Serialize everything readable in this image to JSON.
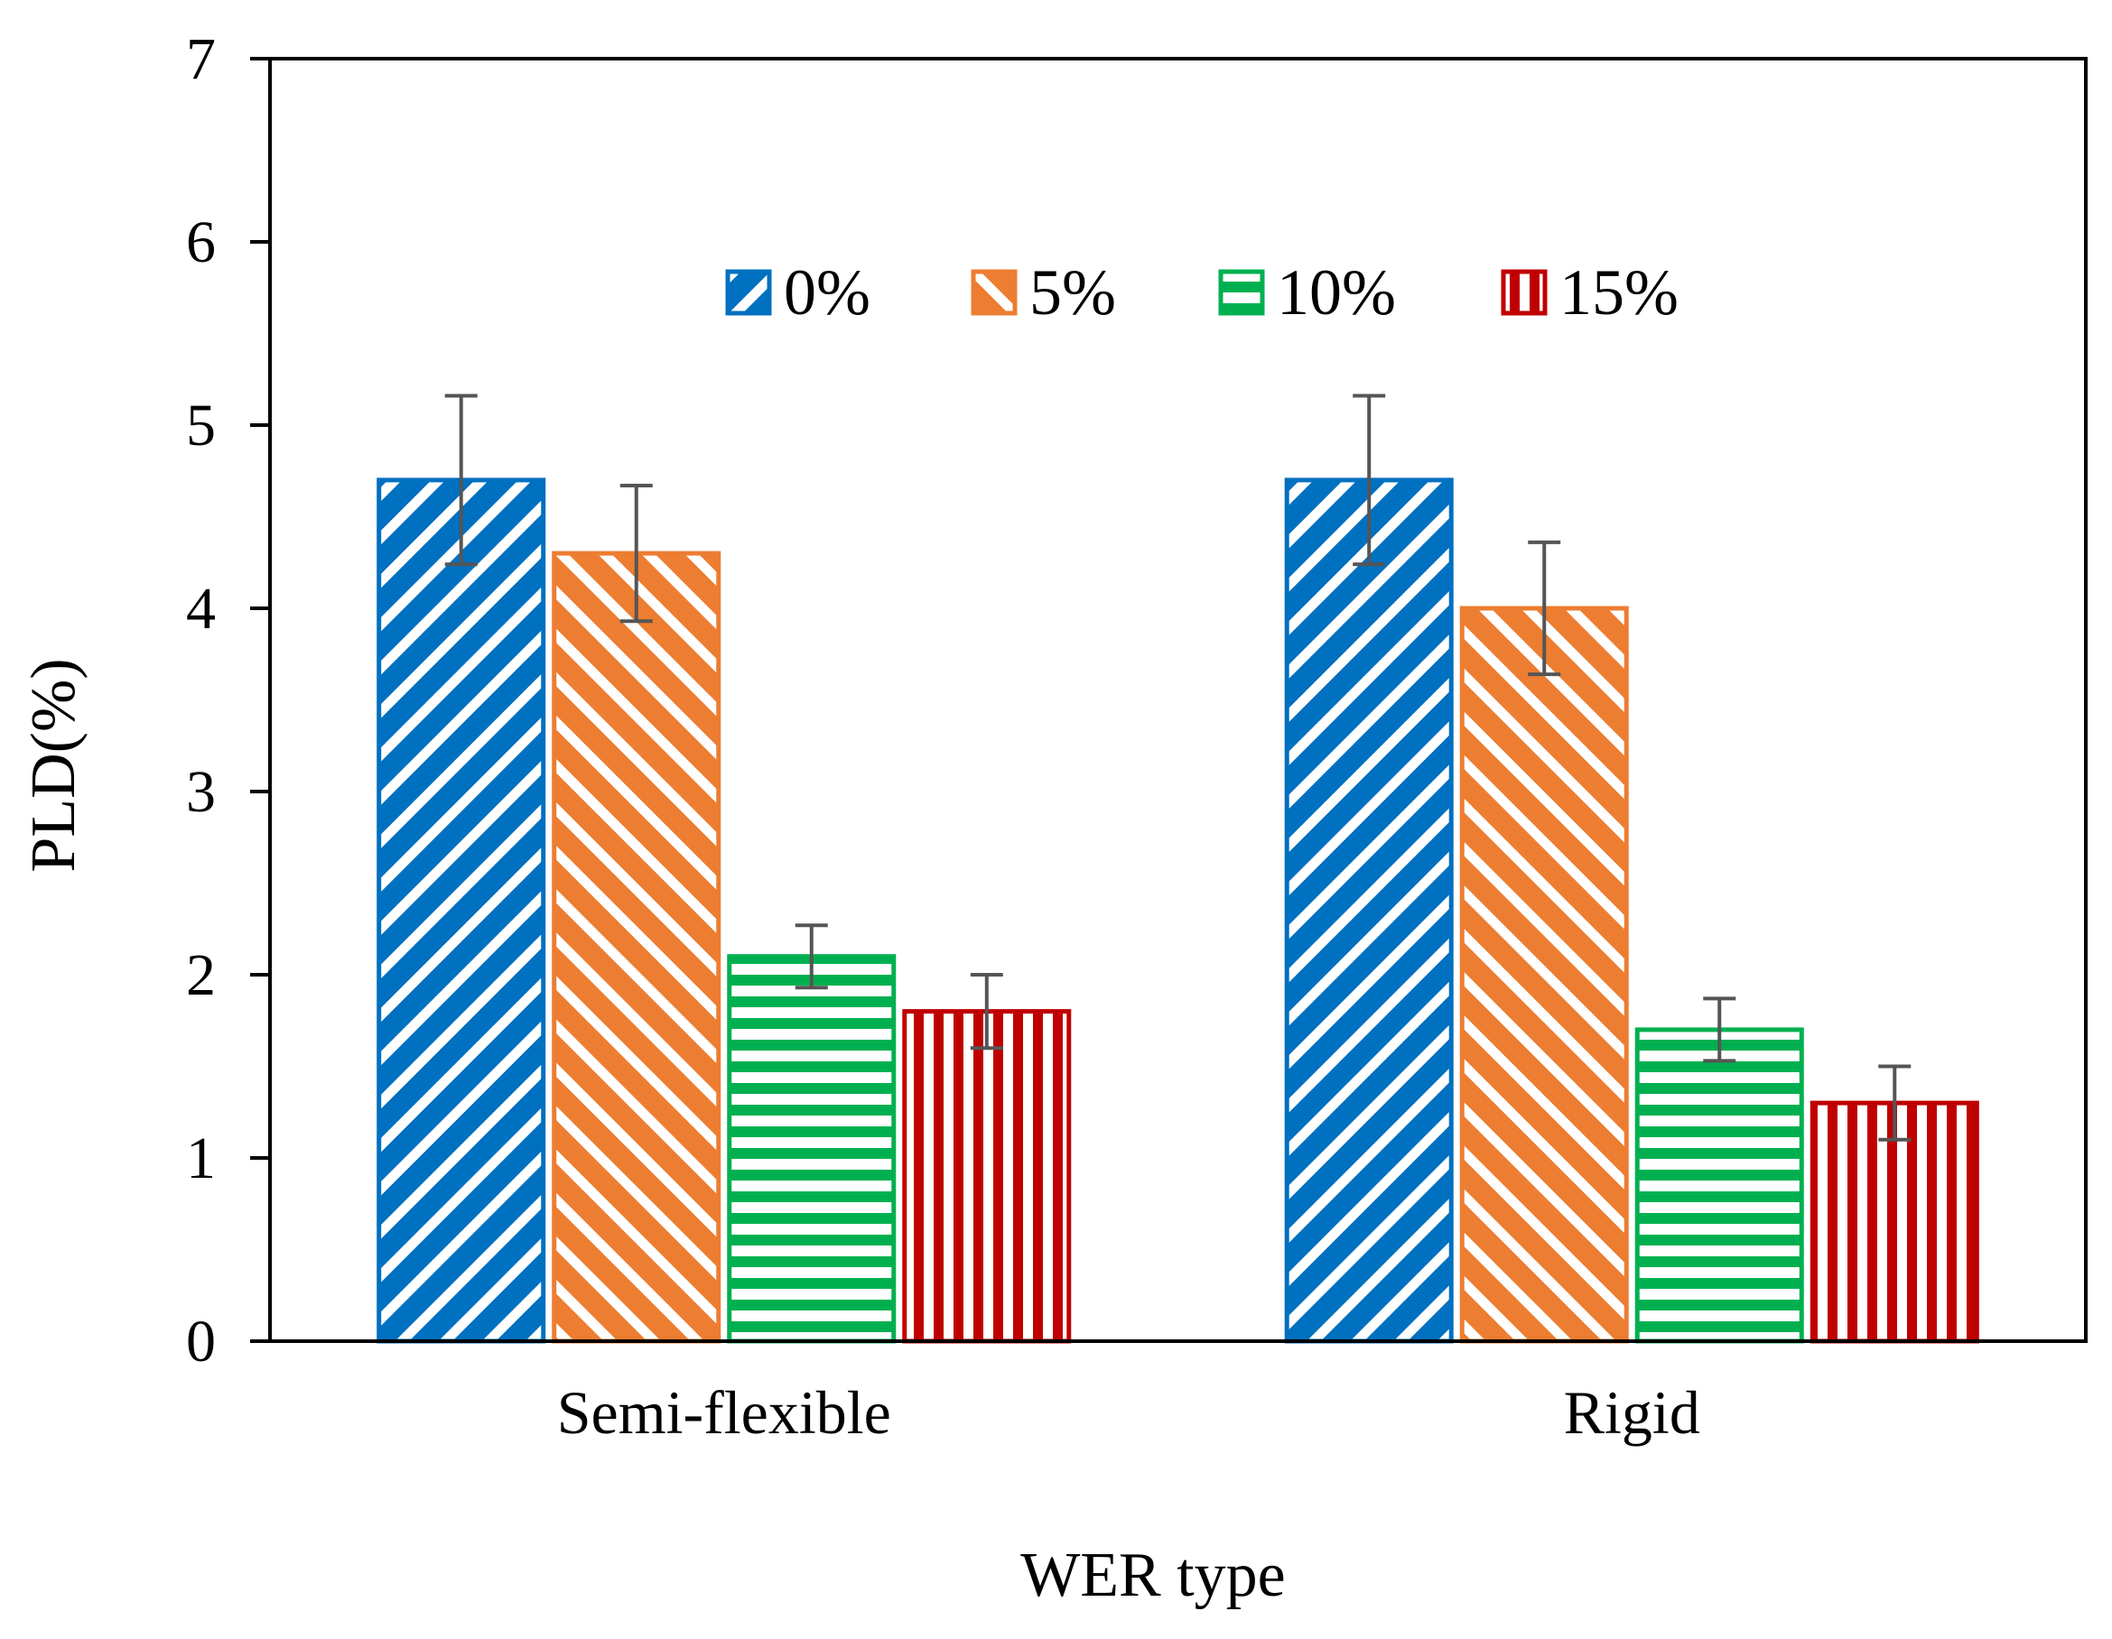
{
  "chart_data": {
    "type": "bar",
    "title": "",
    "xlabel": "WER type",
    "ylabel": "PLD(%)",
    "ylim": [
      0,
      7
    ],
    "yticks": [
      "0",
      "1",
      "2",
      "3",
      "4",
      "5",
      "6",
      "7"
    ],
    "categories": [
      "Semi-flexible",
      "Rigid"
    ],
    "legend_position": "top-center",
    "grid": false,
    "series": [
      {
        "name": "0%",
        "color": "#0070C0",
        "hatch": "diagonal-down",
        "values": [
          4.7,
          4.7
        ],
        "errors": [
          0.46,
          0.46
        ]
      },
      {
        "name": "5%",
        "color": "#ED7D31",
        "hatch": "diagonal-up",
        "values": [
          4.3,
          4.0
        ],
        "errors": [
          0.37,
          0.36
        ]
      },
      {
        "name": "10%",
        "color": "#00B050",
        "hatch": "horizontal",
        "values": [
          2.1,
          1.7
        ],
        "errors": [
          0.17,
          0.17
        ]
      },
      {
        "name": "15%",
        "color": "#C00000",
        "hatch": "vertical",
        "values": [
          1.8,
          1.3
        ],
        "errors": [
          0.2,
          0.2
        ]
      }
    ]
  }
}
